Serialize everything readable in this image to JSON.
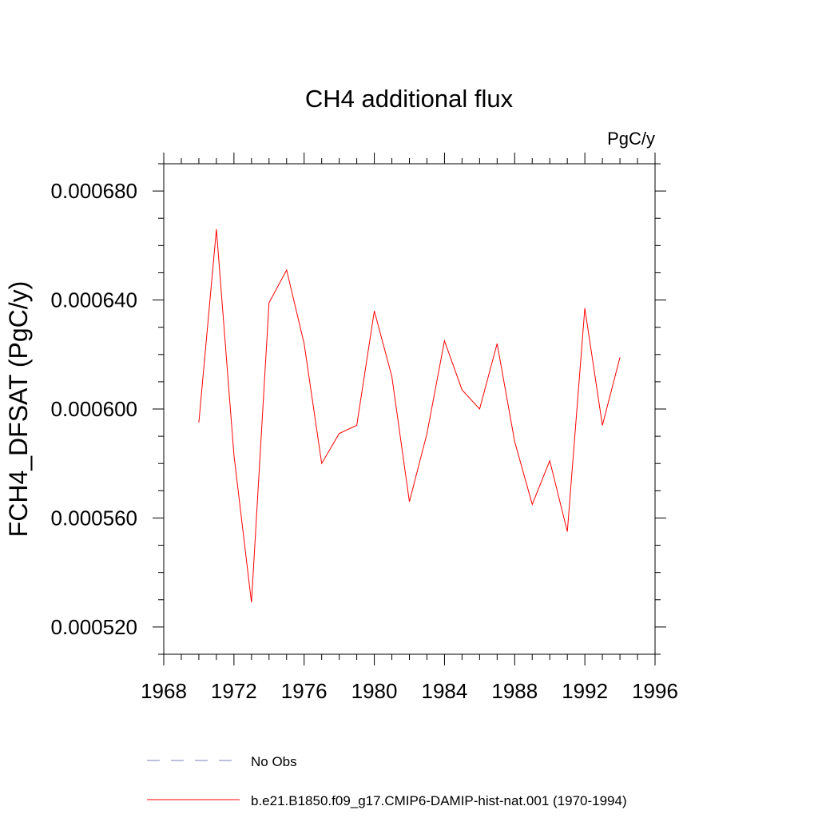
{
  "chart_data": {
    "type": "line",
    "title": "CH4 additional flux",
    "units_label": "PgC/y",
    "ylabel": "FCH4_DFSAT  (PgC/y)",
    "xlabel": "",
    "xlim": [
      1968,
      1996
    ],
    "ylim": [
      0.00051,
      0.00069
    ],
    "xticks": [
      1968,
      1972,
      1976,
      1980,
      1984,
      1988,
      1992,
      1996
    ],
    "xtick_labels": [
      "1968",
      "1972",
      "1976",
      "1980",
      "1984",
      "1988",
      "1992",
      "1996"
    ],
    "yticks": [
      0.00052,
      0.00056,
      0.0006,
      0.00064,
      0.00068
    ],
    "ytick_labels": [
      "0.000520",
      "0.000560",
      "0.000600",
      "0.000640",
      "0.000680"
    ],
    "grid": false,
    "legend_position": "bottom",
    "series": [
      {
        "name": "b.e21.B1850.f09_g17.CMIP6-DAMIP-hist-nat.001 (1970-1994)",
        "color": "#ff0000",
        "style": "solid",
        "x": [
          1970,
          1971,
          1972,
          1973,
          1974,
          1975,
          1976,
          1977,
          1978,
          1979,
          1980,
          1981,
          1982,
          1983,
          1984,
          1985,
          1986,
          1987,
          1988,
          1989,
          1990,
          1991,
          1992,
          1993,
          1994
        ],
        "y": [
          0.000595,
          0.000666,
          0.000583,
          0.000529,
          0.000639,
          0.000651,
          0.000624,
          0.00058,
          0.000591,
          0.000594,
          0.000636,
          0.000612,
          0.000566,
          0.000591,
          0.000625,
          0.000607,
          0.0006,
          0.000624,
          0.000588,
          0.000565,
          0.000581,
          0.000555,
          0.000637,
          0.000594,
          0.000619
        ]
      }
    ],
    "legend": [
      {
        "label": "No Obs",
        "color": "#7f7fbf",
        "style": "dashed"
      },
      {
        "label": "b.e21.B1850.f09_g17.CMIP6-DAMIP-hist-nat.001 (1970-1994)",
        "color": "#ff0000",
        "style": "solid"
      }
    ]
  }
}
